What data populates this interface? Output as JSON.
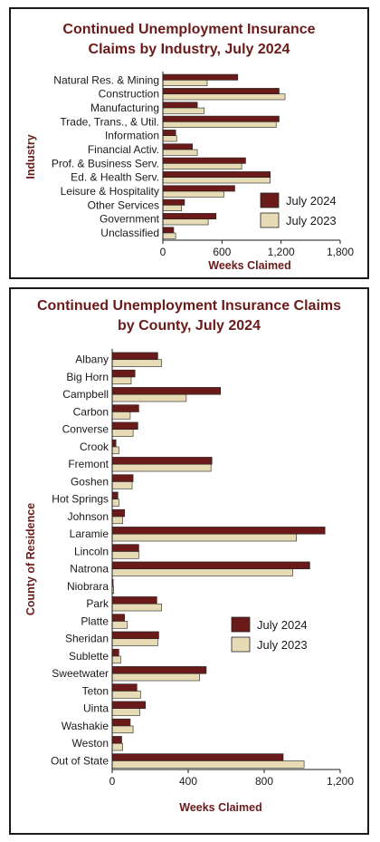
{
  "colors": {
    "july_2024": "#6b1a1a",
    "july_2023": "#e6dbb4",
    "title": "#6b1a1a",
    "outline": "#222222"
  },
  "chart_data": [
    {
      "type": "bar",
      "orientation": "horizontal",
      "title_lines": [
        "Continued Unemployment Insurance",
        "Claims by Industry, July 2024"
      ],
      "xlabel": "Weeks Claimed",
      "ylabel": "Industry",
      "xlim": [
        0,
        1800
      ],
      "xticks": [
        0,
        600,
        1200,
        1800
      ],
      "xtick_labels": [
        "0",
        "600",
        "1,200",
        "1,800"
      ],
      "legend_position": "bottom-right",
      "categories": [
        "Natural Res. & Mining",
        "Construction",
        "Manufacturing",
        "Trade, Trans., & Util.",
        "Information",
        "Financial Activ.",
        "Prof. & Business Serv.",
        "Ed. & Health Serv.",
        "Leisure & Hospitality",
        "Other Services",
        "Government",
        "Unclassified"
      ],
      "series": [
        {
          "name": "July 2024",
          "values": [
            760,
            1180,
            350,
            1180,
            130,
            300,
            840,
            1090,
            730,
            220,
            540,
            110
          ]
        },
        {
          "name": "July 2023",
          "values": [
            450,
            1240,
            420,
            1150,
            140,
            350,
            800,
            1090,
            620,
            190,
            460,
            130
          ]
        }
      ]
    },
    {
      "type": "bar",
      "orientation": "horizontal",
      "title_lines": [
        "Continued Unemployment Insurance Claims",
        "by County, July 2024"
      ],
      "xlabel": "Weeks Claimed",
      "ylabel": "County of Residence",
      "xlim": [
        0,
        1200
      ],
      "xticks": [
        0,
        400,
        800,
        1200
      ],
      "xtick_labels": [
        "0",
        "400",
        "800",
        "1,200"
      ],
      "legend_position": "right",
      "categories": [
        "Albany",
        "Big Horn",
        "Campbell",
        "Carbon",
        "Converse",
        "Crook",
        "Fremont",
        "Goshen",
        "Hot Springs",
        "Johnson",
        "Laramie",
        "Lincoln",
        "Natrona",
        "Niobrara",
        "Park",
        "Platte",
        "Sheridan",
        "Sublette",
        "Sweetwater",
        "Teton",
        "Uinta",
        "Washakie",
        "Weston",
        "Out of State"
      ],
      "series": [
        {
          "name": "July 2024",
          "values": [
            240,
            120,
            570,
            140,
            135,
            20,
            525,
            110,
            30,
            65,
            1120,
            140,
            1040,
            5,
            235,
            65,
            245,
            35,
            495,
            130,
            175,
            95,
            50,
            900
          ]
        },
        {
          "name": "July 2023",
          "values": [
            260,
            100,
            390,
            95,
            110,
            35,
            520,
            105,
            35,
            55,
            970,
            140,
            950,
            8,
            260,
            80,
            240,
            45,
            460,
            150,
            145,
            110,
            55,
            1010
          ]
        }
      ]
    }
  ]
}
